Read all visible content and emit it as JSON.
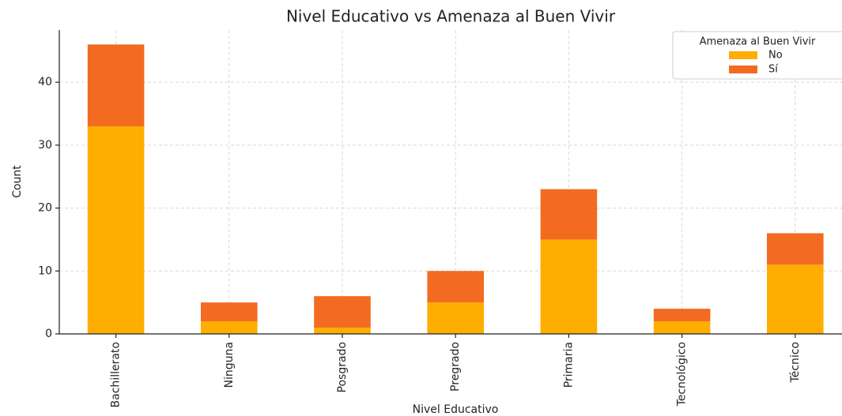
{
  "chart_data": {
    "type": "stacked_bar",
    "title": "Nivel Educativo vs Amenaza al Buen Vivir",
    "x_label": "Nivel Educativo",
    "y_label": "Count",
    "categories": [
      "Bachillerato",
      "Ninguna",
      "Posgrado",
      "Pregrado",
      "Primaria",
      "Tecnológico",
      "Técnico"
    ],
    "series": [
      {
        "name": "No",
        "color": "#ffad00",
        "values": [
          33,
          2,
          1,
          5,
          15,
          2,
          11
        ]
      },
      {
        "name": "Sí",
        "color": "#f26b21",
        "values": [
          13,
          3,
          5,
          5,
          8,
          2,
          5
        ]
      }
    ],
    "legend_title": "Amenaza al Buen Vivir",
    "legend": "upper right",
    "ylim": [
      0,
      48.3
    ],
    "yticks": [
      0,
      10,
      20,
      30,
      40
    ],
    "grid": true
  }
}
